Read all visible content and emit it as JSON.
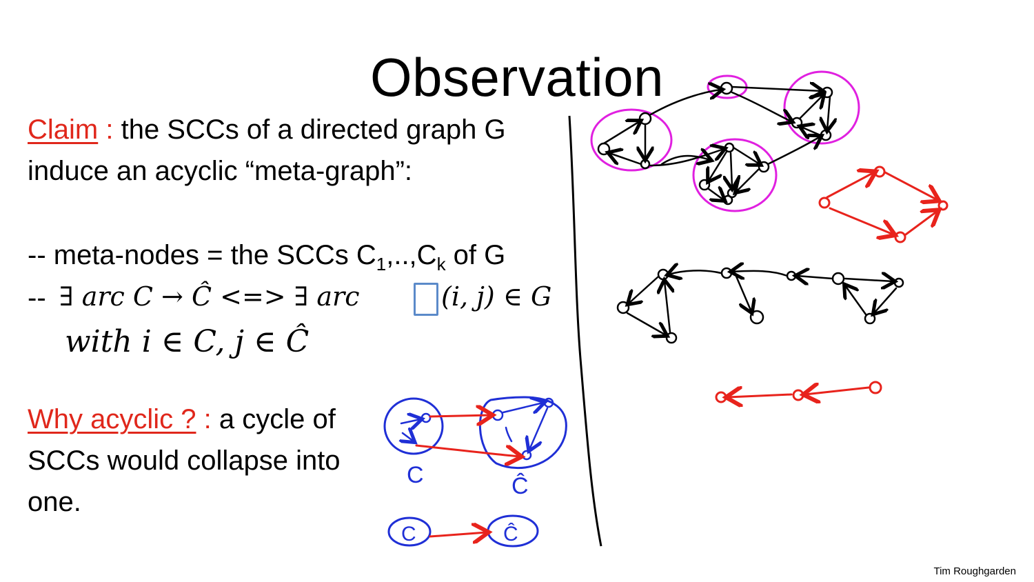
{
  "slide": {
    "title": "Observation",
    "claim": {
      "label": "Claim",
      "sep": " :",
      "line1": " the SCCs of a directed graph G",
      "line2": "induce an acyclic “meta-graph”:"
    },
    "bullet1": {
      "prefix": "-- meta-nodes = the SCCs C",
      "sub1": "1",
      "mid": ",..,C",
      "subk": "k",
      "suffix": " of G"
    },
    "bullet2": {
      "prefix": "--",
      "formula": "∃ arc C → Ĉ <=> ∃ arc",
      "formula_tail": "(i, j) ∈ G",
      "formula_line2": "with i ∈ C,  j ∈ Ĉ"
    },
    "why": {
      "label": "Why acyclic ?",
      "sep": " :",
      "line1": " a cycle of",
      "line2": "SCCs would collapse into",
      "line3": "one."
    },
    "sketch_labels": {
      "c": "C",
      "c_hat": "Ĉ",
      "c_small": "C",
      "c_hat_small": "Ĉ"
    },
    "footer": "Tim Roughgarden"
  },
  "colors": {
    "text": "#000000",
    "accent_red": "#e0271b",
    "ink_magenta": "#e020e0",
    "ink_red": "#e8231c",
    "ink_blue": "#1f2fd6",
    "selection_box": "#5b8ac9"
  }
}
